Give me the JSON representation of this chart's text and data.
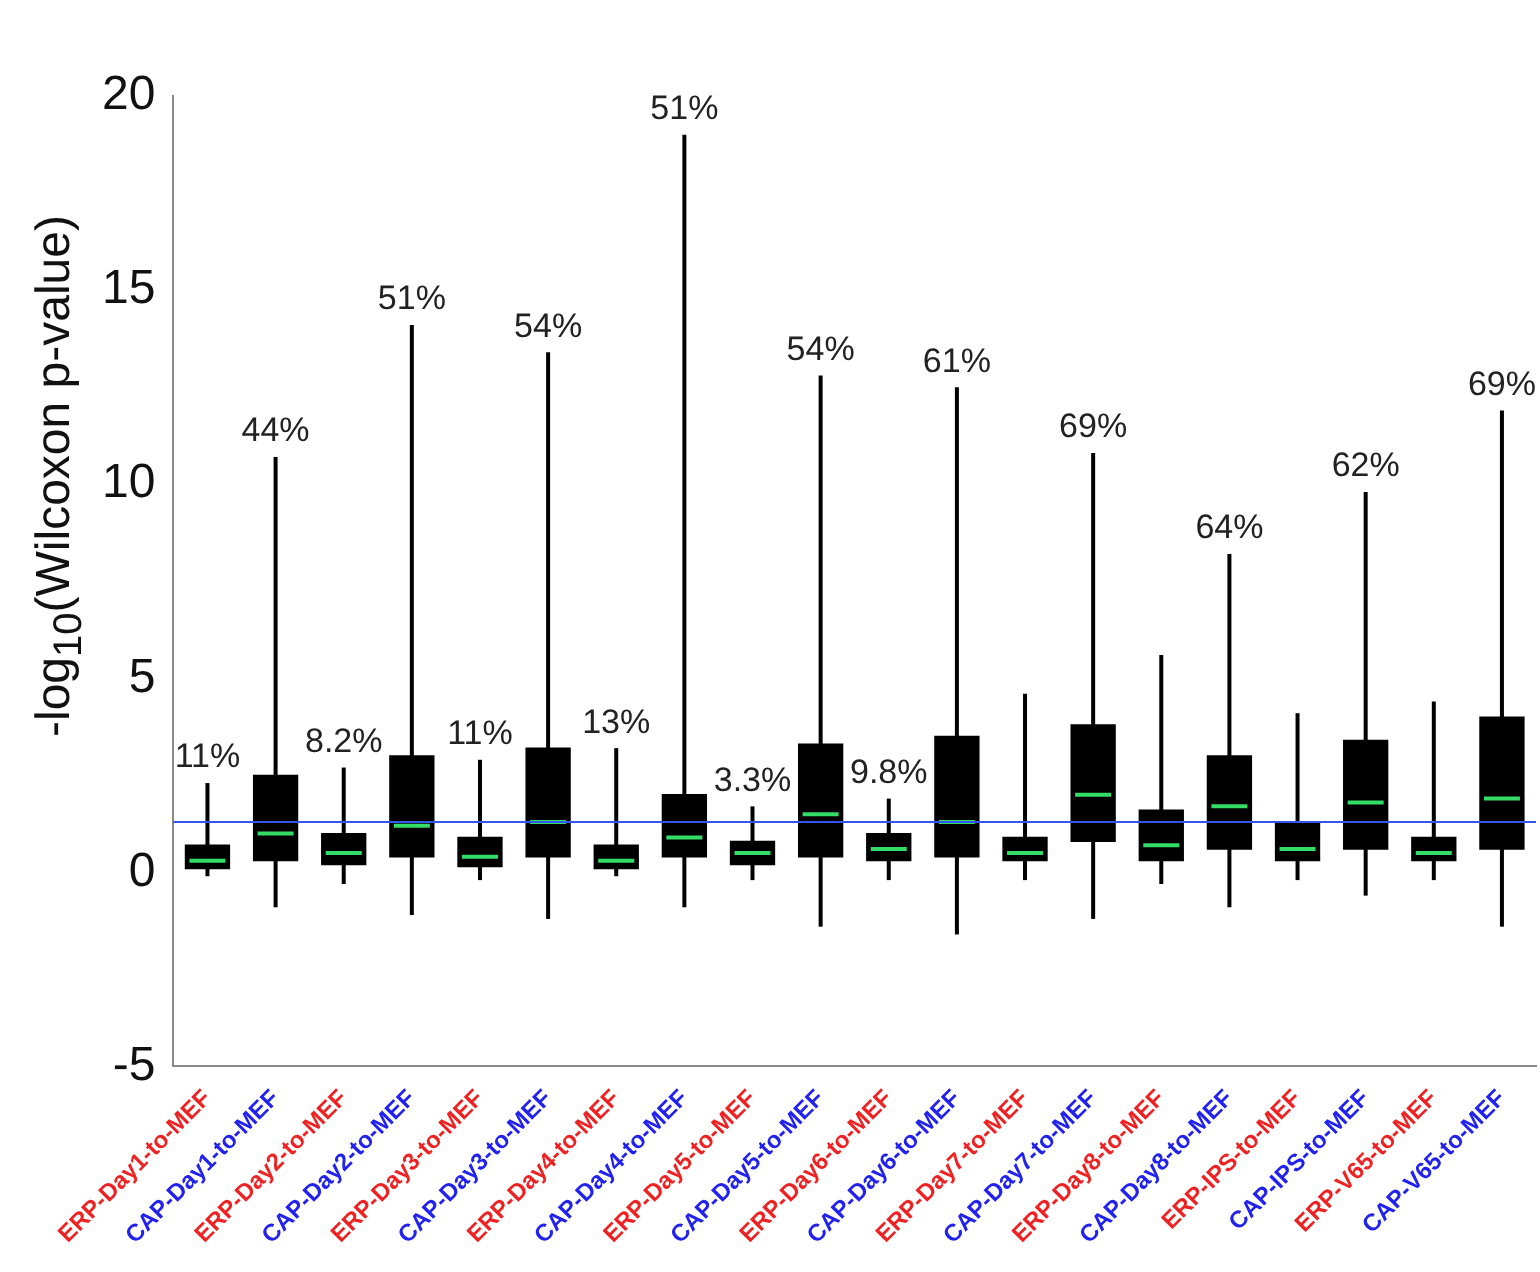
{
  "chart_data": {
    "type": "box",
    "ylabel": "-log$_{10}$(Wilcoxon p-value)",
    "categories": [
      "ERP-Day1-to-MEF",
      "CAP-Day1-to-MEF",
      "ERP-Day2-to-MEF",
      "CAP-Day2-to-MEF",
      "ERP-Day3-to-MEF",
      "CAP-Day3-to-MEF",
      "ERP-Day4-to-MEF",
      "CAP-Day4-to-MEF",
      "ERP-Day5-to-MEF",
      "CAP-Day5-to-MEF",
      "ERP-Day6-to-MEF",
      "CAP-Day6-to-MEF",
      "ERP-Day7-to-MEF",
      "CAP-Day7-to-MEF",
      "ERP-Day8-to-MEF",
      "CAP-Day8-to-MEF",
      "ERP-IPS-to-MEF",
      "CAP-IPS-to-MEF",
      "ERP-V65-to-MEF",
      "CAP-V65-to-MEF"
    ],
    "boxes": [
      {
        "low": -0.1,
        "q1": 0.1,
        "median": 0.3,
        "q3": 0.7,
        "high": 2.3
      },
      {
        "low": -0.9,
        "q1": 0.3,
        "median": 1.0,
        "q3": 2.5,
        "high": 10.7
      },
      {
        "low": -0.3,
        "q1": 0.2,
        "median": 0.5,
        "q3": 1.0,
        "high": 2.7
      },
      {
        "low": -1.1,
        "q1": 0.4,
        "median": 1.2,
        "q3": 3.0,
        "high": 14.1
      },
      {
        "low": -0.2,
        "q1": 0.15,
        "median": 0.4,
        "q3": 0.9,
        "high": 2.9
      },
      {
        "low": -1.2,
        "q1": 0.4,
        "median": 1.3,
        "q3": 3.2,
        "high": 13.4
      },
      {
        "low": -0.1,
        "q1": 0.1,
        "median": 0.3,
        "q3": 0.7,
        "high": 3.2
      },
      {
        "low": -0.9,
        "q1": 0.4,
        "median": 0.9,
        "q3": 2.0,
        "high": 19.0
      },
      {
        "low": -0.2,
        "q1": 0.2,
        "median": 0.5,
        "q3": 0.8,
        "high": 1.7
      },
      {
        "low": -1.4,
        "q1": 0.4,
        "median": 1.5,
        "q3": 3.3,
        "high": 12.8
      },
      {
        "low": -0.2,
        "q1": 0.3,
        "median": 0.6,
        "q3": 1.0,
        "high": 1.9
      },
      {
        "low": -1.6,
        "q1": 0.4,
        "median": 1.3,
        "q3": 3.5,
        "high": 12.5
      },
      {
        "low": -0.2,
        "q1": 0.3,
        "median": 0.5,
        "q3": 0.9,
        "high": 4.6
      },
      {
        "low": -1.2,
        "q1": 0.8,
        "median": 2.0,
        "q3": 3.8,
        "high": 10.8
      },
      {
        "low": -0.3,
        "q1": 0.3,
        "median": 0.7,
        "q3": 1.6,
        "high": 5.6
      },
      {
        "low": -0.9,
        "q1": 0.6,
        "median": 1.7,
        "q3": 3.0,
        "high": 8.2
      },
      {
        "low": -0.2,
        "q1": 0.3,
        "median": 0.6,
        "q3": 1.3,
        "high": 4.1
      },
      {
        "low": -0.6,
        "q1": 0.6,
        "median": 1.8,
        "q3": 3.4,
        "high": 9.8
      },
      {
        "low": -0.2,
        "q1": 0.3,
        "median": 0.5,
        "q3": 0.9,
        "high": 4.4
      },
      {
        "low": -1.4,
        "q1": 0.6,
        "median": 1.9,
        "q3": 4.0,
        "high": 11.9
      }
    ],
    "color": "#000000",
    "ylim": [
      -5,
      20
    ],
    "yticks": [
      -5,
      0,
      5,
      10,
      15,
      20
    ],
    "grid": false,
    "legend": false,
    "ref_lines": [
      {
        "axis": "y",
        "value": 1.3,
        "color": "#3355ee"
      }
    ],
    "value_labels": [
      "11%",
      "44%",
      "8.2%",
      "51%",
      "11%",
      "54%",
      "13%",
      "51%",
      "3.3%",
      "54%",
      "9.8%",
      "61%",
      null,
      "69%",
      null,
      "64%",
      null,
      "62%",
      null,
      "69%"
    ]
  }
}
